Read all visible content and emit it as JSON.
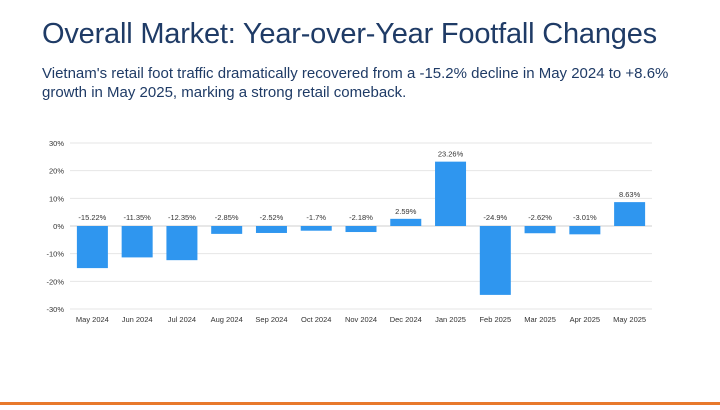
{
  "slide": {
    "title": "Overall Market: Year-over-Year Footfall Changes",
    "subtitle": "Vietnam's retail foot traffic dramatically recovered from a -15.2% decline in May 2024 to +8.6% growth in May 2025, marking a strong retail comeback."
  },
  "colors": {
    "title": "#1f3b66",
    "bar": "#2f96ef",
    "grid": "#e6e6e6",
    "axis_text": "#333333",
    "footer_accent": "#e8792b"
  },
  "chart_data": {
    "type": "bar",
    "categories": [
      "May 2024",
      "Jun 2024",
      "Jul 2024",
      "Aug 2024",
      "Sep 2024",
      "Oct 2024",
      "Nov 2024",
      "Dec 2024",
      "Jan 2025",
      "Feb 2025",
      "Mar 2025",
      "Apr 2025",
      "May 2025"
    ],
    "values": [
      -15.22,
      -11.35,
      -12.35,
      -2.85,
      -2.52,
      -1.7,
      -2.18,
      2.59,
      23.26,
      -24.9,
      -2.62,
      -3.01,
      8.63
    ],
    "data_labels": [
      "-15.22%",
      "-11.35%",
      "-12.35%",
      "-2.85%",
      "-2.52%",
      "-1.7%",
      "-2.18%",
      "2.59%",
      "23.26%",
      "-24.9%",
      "-2.62%",
      "-3.01%",
      "8.63%"
    ],
    "ylim": [
      -30,
      30
    ],
    "yticks": [
      30,
      20,
      10,
      0,
      -10,
      -20,
      -30
    ],
    "ytick_labels": [
      "30%",
      "20%",
      "10%",
      "0%",
      "-10%",
      "-20%",
      "-30%"
    ],
    "grid": true,
    "legend": "none"
  }
}
